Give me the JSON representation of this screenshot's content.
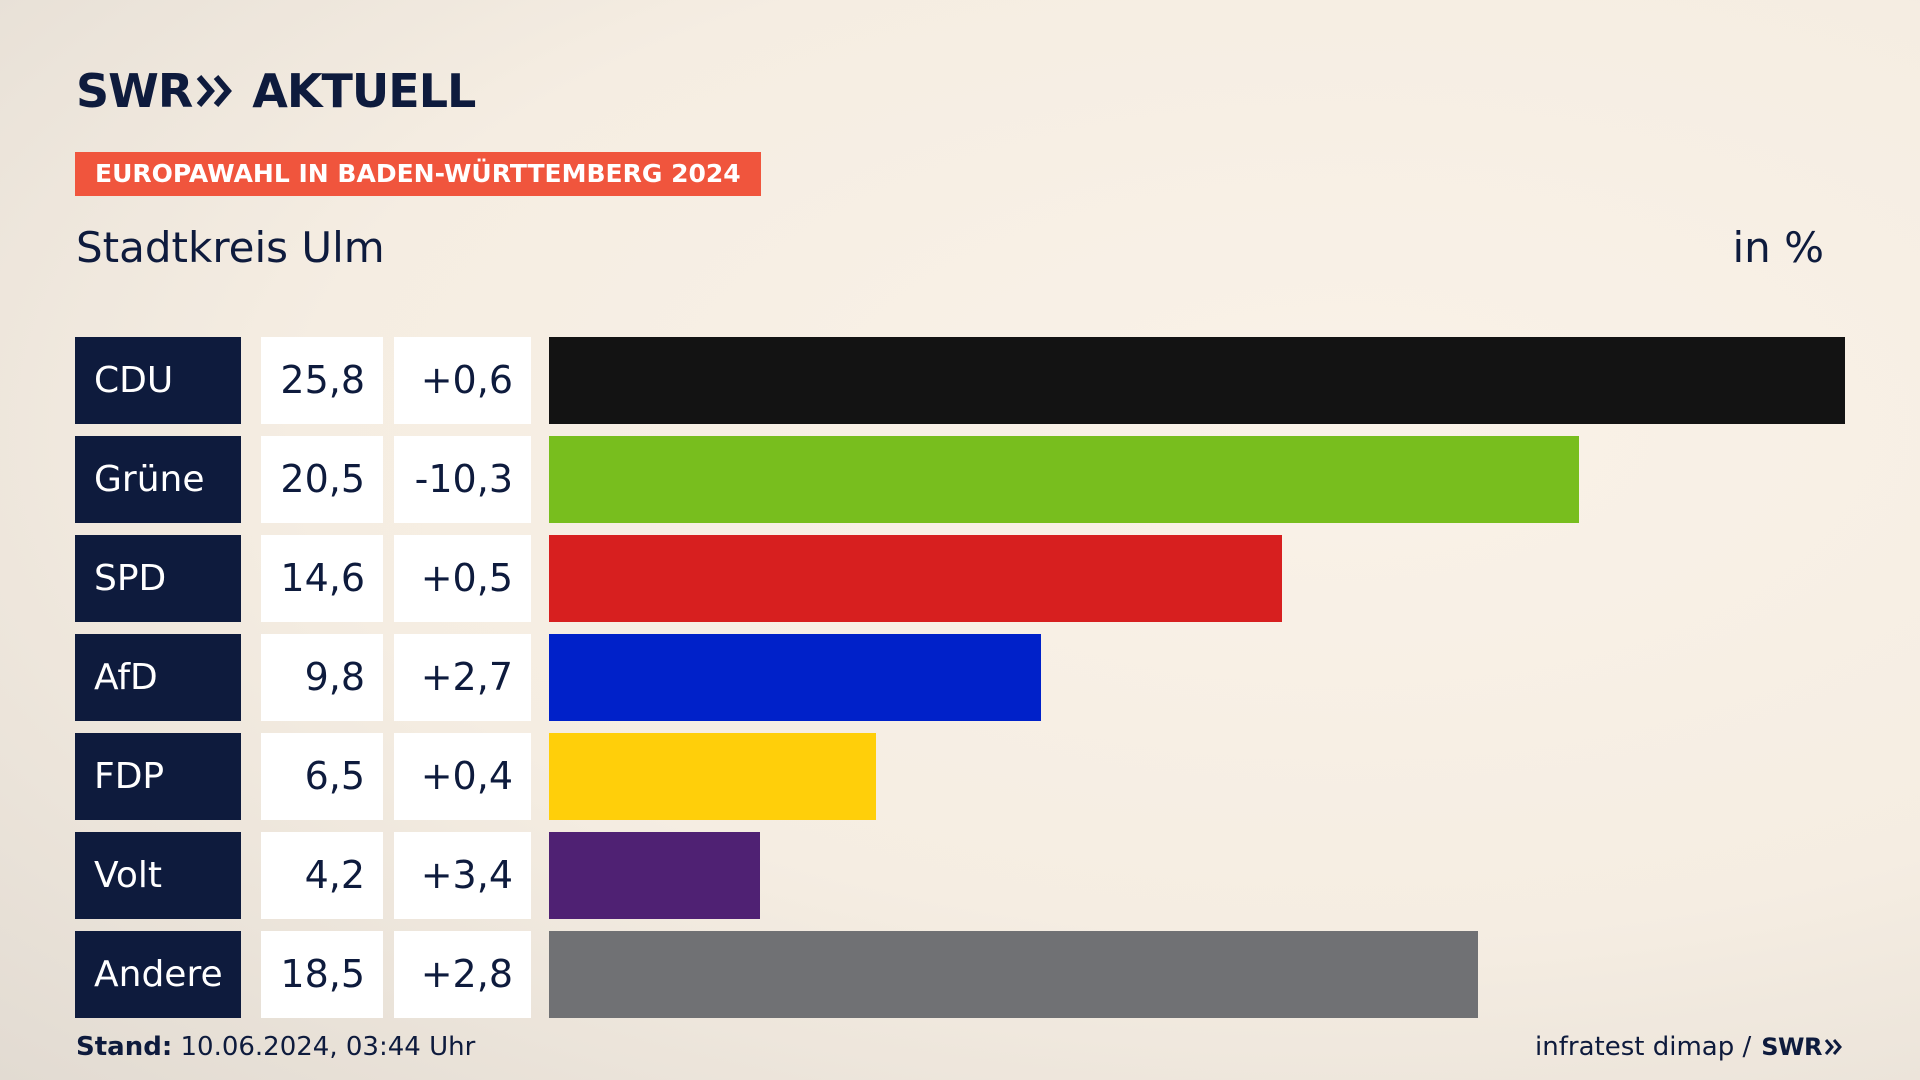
{
  "brand": {
    "logo_text": "SWR",
    "logo_suffix": "AKTUELL"
  },
  "banner": "EUROPAWAHL IN BADEN-WÜRTTEMBERG 2024",
  "subtitle": "Stadtkreis Ulm",
  "unit": "in %",
  "footer": {
    "stand_label": "Stand:",
    "stand_value": "10.06.2024, 03:44 Uhr",
    "source": "infratest dimap /",
    "source_logo": "SWR"
  },
  "colors": {
    "navy": "#0e1b3d",
    "banner": "#f0553d"
  },
  "chart_data": {
    "type": "bar",
    "orientation": "horizontal",
    "categories": [
      "CDU",
      "Grüne",
      "SPD",
      "AfD",
      "FDP",
      "Volt",
      "Andere"
    ],
    "values": [
      25.8,
      20.5,
      14.6,
      9.8,
      6.5,
      4.2,
      18.5
    ],
    "value_labels": [
      "25,8",
      "20,5",
      "14,6",
      "9,8",
      "6,5",
      "4,2",
      "18,5"
    ],
    "changes": [
      0.6,
      -10.3,
      0.5,
      2.7,
      0.4,
      3.4,
      2.8
    ],
    "change_labels": [
      "+0,6",
      "-10,3",
      "+0,5",
      "+2,7",
      "+0,4",
      "+3,4",
      "+2,8"
    ],
    "colors": [
      "#131313",
      "#78be1e",
      "#d71f1f",
      "#0021c9",
      "#ffcf0a",
      "#4f2173",
      "#707174"
    ],
    "title": "Stadtkreis Ulm",
    "ylabel": "in %",
    "xlim": [
      0,
      25.8
    ],
    "grid": false
  }
}
